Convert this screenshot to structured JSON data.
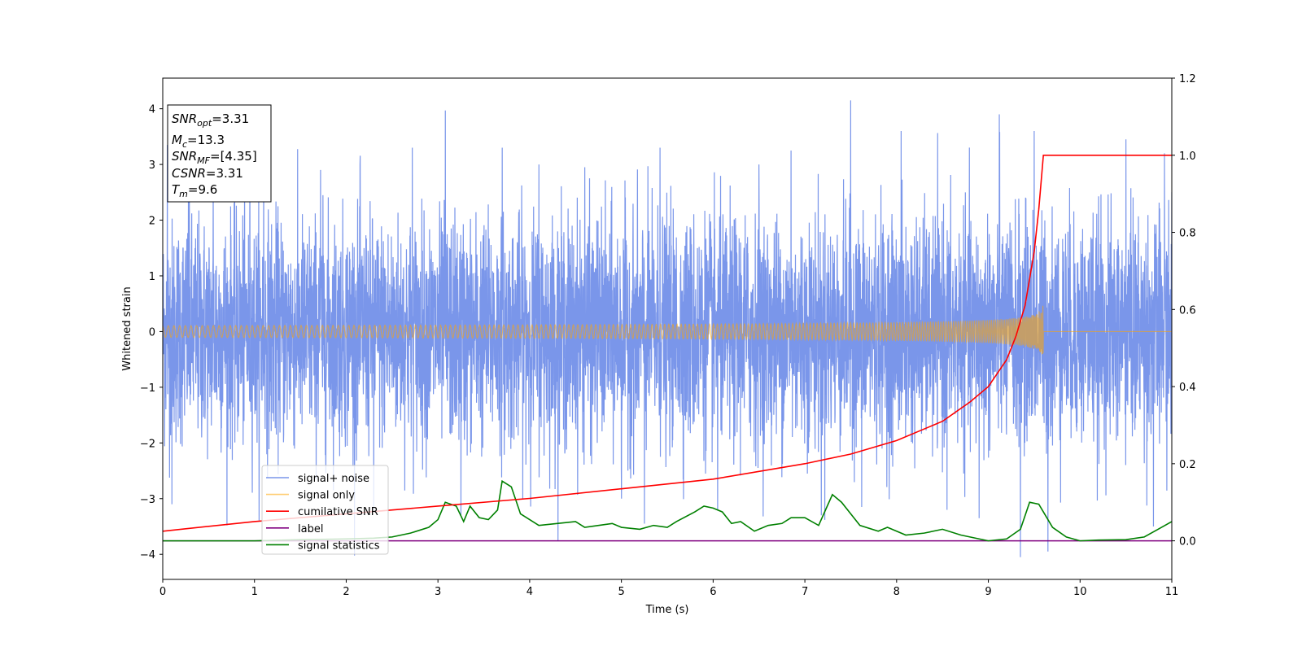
{
  "chart_data": {
    "type": "line",
    "xlabel": "Time (s)",
    "ylabel": "Whitened strain",
    "xlim": [
      0,
      11
    ],
    "ylim": [
      -4.45,
      4.55
    ],
    "y2lim": [
      -0.1,
      1.2
    ],
    "x_ticks": [
      "0",
      "1",
      "2",
      "3",
      "4",
      "5",
      "6",
      "7",
      "8",
      "9",
      "10",
      "11"
    ],
    "y_ticks": [
      "−4",
      "−3",
      "−2",
      "−1",
      "0",
      "1",
      "2",
      "3",
      "4"
    ],
    "y2_ticks": [
      "0.0",
      "0.2",
      "0.4",
      "0.6",
      "0.8",
      "1.0",
      "1.2"
    ],
    "info_box": {
      "snr_opt": {
        "base": "SNR",
        "sub": "opt",
        "value": "=3.31"
      },
      "mc": {
        "base": "M",
        "sub": "c",
        "value": "=13.3"
      },
      "snr_mf": {
        "base": "SNR",
        "sub": "MF",
        "value": "=[4.35]"
      },
      "csnr": {
        "base": "CSNR",
        "value": "=3.31"
      },
      "tm": {
        "base": "T",
        "sub": "m",
        "value": "=9.6"
      }
    },
    "legend": {
      "placement": "lower-left",
      "entries": [
        {
          "label": "signal+ noise",
          "color": "#4169e1"
        },
        {
          "label": "signal only",
          "color": "#ffa500"
        },
        {
          "label": "cumilative SNR",
          "color": "#ff0000"
        },
        {
          "label": "label",
          "color": "#800080"
        },
        {
          "label": "signal statistics",
          "color": "#008000"
        }
      ]
    },
    "series": [
      {
        "name": "signal+ noise",
        "axis": "left",
        "color": "#4169e1",
        "description_values": {
          "noise_std": 1.0,
          "range": [
            -4.1,
            4.2
          ]
        },
        "spikes": [
          [
            0.05,
            3.35
          ],
          [
            0.1,
            -3.1
          ],
          [
            0.28,
            2.7
          ],
          [
            0.55,
            2.6
          ],
          [
            0.95,
            2.8
          ],
          [
            1.1,
            3.0
          ],
          [
            1.72,
            2.9
          ],
          [
            2.15,
            3.0
          ],
          [
            2.3,
            -3.2
          ],
          [
            2.72,
            3.3
          ],
          [
            3.08,
            3.97
          ],
          [
            3.25,
            -3.3
          ],
          [
            3.7,
            3.3
          ],
          [
            4.1,
            -3.65
          ],
          [
            4.1,
            3.0
          ],
          [
            4.6,
            2.95
          ],
          [
            5.0,
            -3.0
          ],
          [
            5.25,
            -3.45
          ],
          [
            5.42,
            3.3
          ],
          [
            6.05,
            -3.2
          ],
          [
            6.5,
            3.0
          ],
          [
            6.85,
            3.25
          ],
          [
            7.18,
            -3.3
          ],
          [
            7.5,
            4.15
          ],
          [
            7.62,
            -3.15
          ],
          [
            8.05,
            3.6
          ],
          [
            8.55,
            -3.2
          ],
          [
            8.9,
            -3.35
          ],
          [
            9.12,
            3.9
          ],
          [
            9.35,
            -4.05
          ],
          [
            9.5,
            3.6
          ],
          [
            9.65,
            3.75
          ],
          [
            9.65,
            -3.95
          ],
          [
            10.5,
            3.45
          ],
          [
            10.8,
            -3.5
          ],
          [
            10.92,
            3.2
          ],
          [
            11.0,
            2.5
          ]
        ]
      },
      {
        "name": "signal only",
        "axis": "left",
        "color": "#ffa500",
        "merger_time": 9.6,
        "peak_amplitude": 0.55
      },
      {
        "name": "cumilative SNR",
        "axis": "right",
        "color": "#ff0000",
        "x": [
          0,
          1,
          2,
          3,
          4,
          5,
          6,
          7,
          7.5,
          8,
          8.5,
          8.8,
          9.0,
          9.2,
          9.3,
          9.4,
          9.5,
          9.55,
          9.6,
          9.6,
          11
        ],
        "y": [
          0.025,
          0.05,
          0.07,
          0.09,
          0.11,
          0.135,
          0.16,
          0.2,
          0.225,
          0.26,
          0.31,
          0.36,
          0.4,
          0.47,
          0.53,
          0.61,
          0.75,
          0.86,
          1.0,
          1.0,
          1.0
        ]
      },
      {
        "name": "label",
        "axis": "right",
        "color": "#800080",
        "x": [
          0,
          11
        ],
        "y": [
          0.0,
          0.0
        ]
      },
      {
        "name": "signal statistics",
        "axis": "right",
        "color": "#008000",
        "x": [
          0,
          1,
          1.5,
          2,
          2.3,
          2.5,
          2.7,
          2.9,
          3.0,
          3.08,
          3.2,
          3.28,
          3.35,
          3.45,
          3.55,
          3.65,
          3.7,
          3.8,
          3.9,
          4.0,
          4.1,
          4.3,
          4.5,
          4.6,
          4.75,
          4.9,
          5.0,
          5.2,
          5.35,
          5.5,
          5.6,
          5.8,
          5.9,
          6.0,
          6.1,
          6.2,
          6.3,
          6.45,
          6.6,
          6.75,
          6.85,
          7.0,
          7.15,
          7.3,
          7.4,
          7.6,
          7.8,
          7.9,
          8.1,
          8.3,
          8.5,
          8.7,
          8.9,
          9.0,
          9.2,
          9.35,
          9.45,
          9.55,
          9.6,
          9.7,
          9.85,
          10.0,
          10.2,
          10.5,
          10.7,
          10.85,
          11.0
        ],
        "y": [
          0.0,
          0.0,
          0.003,
          0.005,
          0.007,
          0.01,
          0.02,
          0.035,
          0.055,
          0.1,
          0.09,
          0.05,
          0.09,
          0.06,
          0.055,
          0.08,
          0.155,
          0.14,
          0.07,
          0.055,
          0.04,
          0.045,
          0.05,
          0.035,
          0.04,
          0.045,
          0.035,
          0.03,
          0.04,
          0.035,
          0.05,
          0.075,
          0.09,
          0.085,
          0.075,
          0.045,
          0.05,
          0.025,
          0.04,
          0.045,
          0.06,
          0.06,
          0.04,
          0.12,
          0.1,
          0.04,
          0.025,
          0.035,
          0.015,
          0.02,
          0.03,
          0.015,
          0.005,
          0.0,
          0.005,
          0.03,
          0.1,
          0.095,
          0.075,
          0.035,
          0.01,
          0.0,
          0.002,
          0.003,
          0.01,
          0.03,
          0.05
        ]
      }
    ]
  }
}
